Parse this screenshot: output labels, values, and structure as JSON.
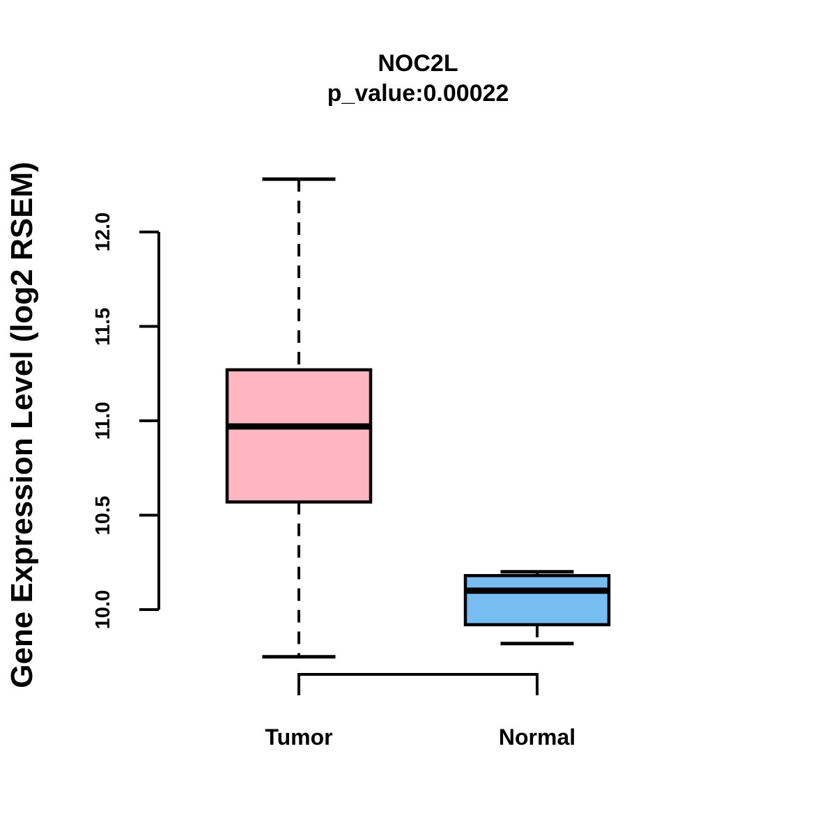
{
  "title": {
    "gene": "NOC2L",
    "p_value_label": "p_value:0.00022",
    "p_value": "0.00022"
  },
  "chart_data": {
    "type": "boxplot",
    "title": "NOC2L",
    "subtitle": "p_value:0.00022",
    "ylabel": "Gene Expression Level (log2 RSEM)",
    "xlabel": "",
    "ylim": [
      10.0,
      12.0
    ],
    "yticks": [
      10.0,
      10.5,
      11.0,
      11.5,
      12.0
    ],
    "ytick_labels": [
      "10.0",
      "10.5",
      "11.0",
      "11.5",
      "12.0"
    ],
    "categories": [
      "Tumor",
      "Normal"
    ],
    "series": [
      {
        "name": "Tumor",
        "color": "#FFB6C1",
        "whisker_low": 9.75,
        "q1": 10.57,
        "median": 10.97,
        "q3": 11.27,
        "whisker_high": 12.28
      },
      {
        "name": "Normal",
        "color": "#77BDF2",
        "whisker_low": 9.82,
        "q1": 9.92,
        "median": 10.1,
        "q3": 10.18,
        "whisker_high": 10.2
      }
    ],
    "grid": false,
    "legend": false,
    "border_color": "#000000",
    "text_color": "#000000",
    "background_color": "#ffffff"
  }
}
